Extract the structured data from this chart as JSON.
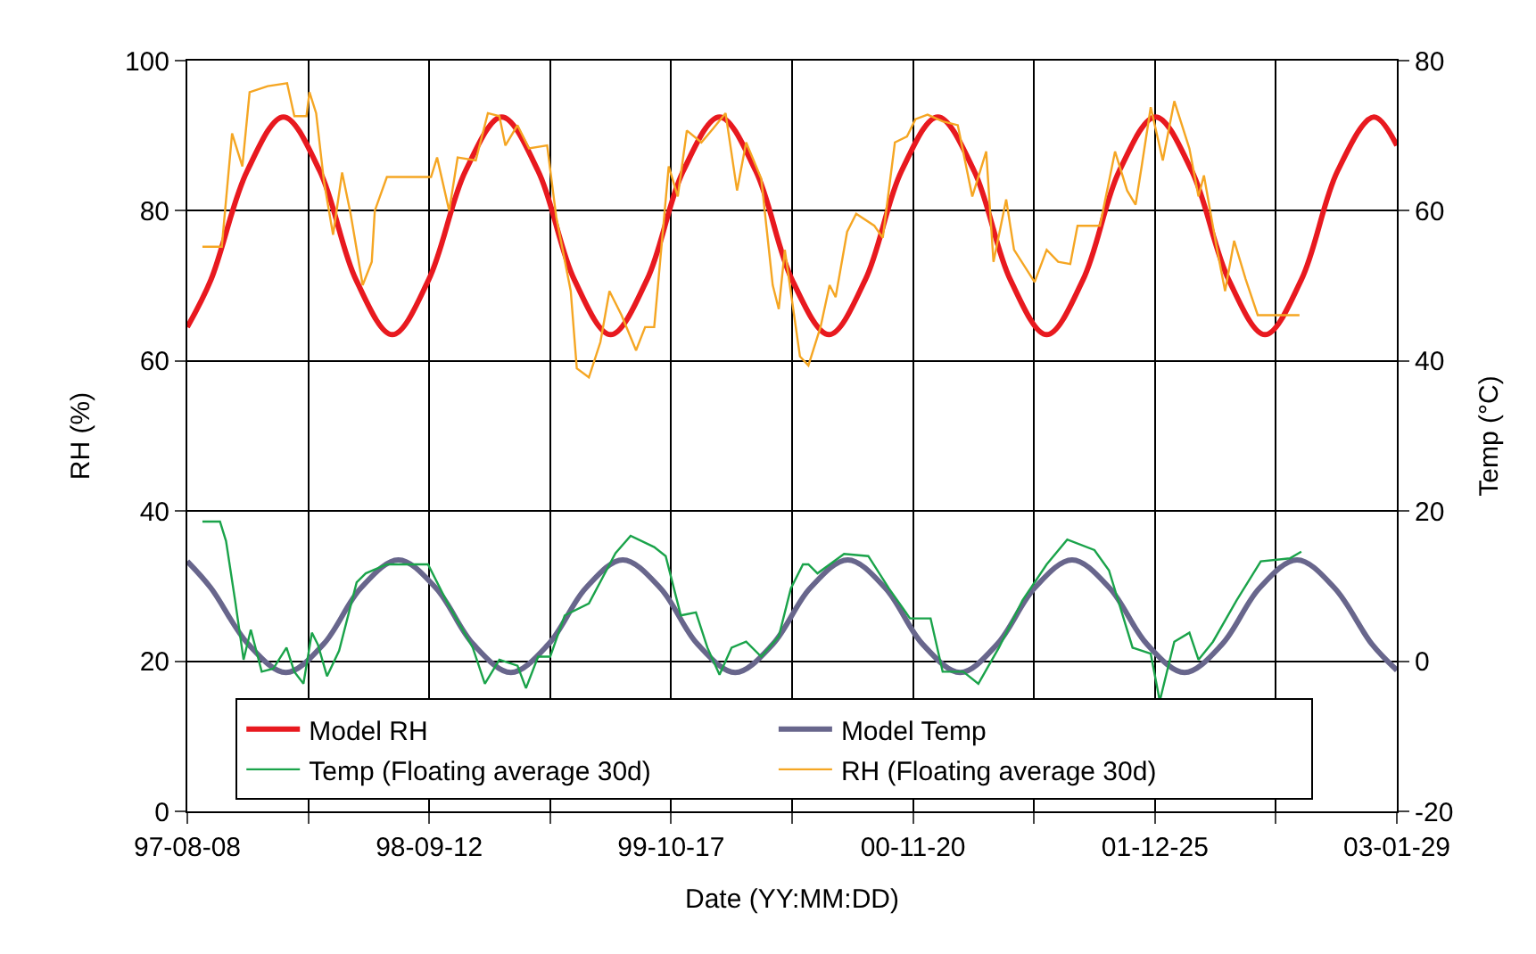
{
  "chart_data": {
    "type": "line",
    "xlabel": "Date (YY:MM:DD)",
    "ylabel": "RH (%)",
    "y2label": "Temp (°C)",
    "xlim": [
      "1997-08-08",
      "2003-01-29"
    ],
    "xticks": [
      {
        "value": "1997-08-08",
        "label": "97-08-08"
      },
      {
        "value": "1998-02-24",
        "label": null
      },
      {
        "value": "1998-09-12",
        "label": "98-09-12"
      },
      {
        "value": "1999-03-31",
        "label": null
      },
      {
        "value": "1999-10-17",
        "label": "99-10-17"
      },
      {
        "value": "2000-05-04",
        "label": null
      },
      {
        "value": "2000-11-20",
        "label": "00-11-20"
      },
      {
        "value": "2001-06-08",
        "label": null
      },
      {
        "value": "2001-12-25",
        "label": "01-12-25"
      },
      {
        "value": "2002-07-13",
        "label": null
      },
      {
        "value": "2003-01-29",
        "label": "03-01-29"
      }
    ],
    "ylim": [
      0,
      100
    ],
    "yticks": [
      0,
      20,
      40,
      60,
      80,
      100
    ],
    "y2lim": [
      -20,
      80
    ],
    "y2ticks": [
      -20,
      0,
      20,
      40,
      60,
      80
    ],
    "grid": true,
    "legend": "bottom",
    "marker": "none",
    "series": [
      {
        "name": "Model RH",
        "color": "#e8191f",
        "x": [
          "1997-08-08",
          "1997-09-16",
          "1997-11-15",
          "1998-01-14",
          "1998-03-15",
          "1998-05-14",
          "1998-07-13",
          "1998-09-11",
          "1998-11-11",
          "1999-01-10",
          "1999-03-11",
          "1999-05-10",
          "1999-07-09",
          "1999-09-07",
          "1999-11-06",
          "2000-01-05",
          "2000-03-05",
          "2000-05-04",
          "2000-07-04",
          "2000-09-02",
          "2000-11-01",
          "2000-12-31",
          "2001-03-01",
          "2001-04-30",
          "2001-06-29",
          "2001-08-28",
          "2001-10-27",
          "2001-12-26",
          "2002-02-24",
          "2002-04-26",
          "2002-06-25",
          "2002-08-24",
          "2002-10-23",
          "2002-12-22",
          "2003-01-29"
        ],
        "values": [
          64.5,
          70.8,
          85.3,
          92.5,
          85.3,
          70.8,
          63.5,
          70.8,
          85.3,
          92.5,
          85.3,
          70.8,
          63.5,
          70.8,
          85.3,
          92.5,
          85.3,
          70.8,
          63.5,
          70.8,
          85.3,
          92.5,
          85.3,
          70.8,
          63.5,
          70.8,
          85.3,
          92.5,
          85.3,
          70.8,
          63.5,
          70.8,
          85.3,
          92.5,
          88.7
        ]
      },
      {
        "name": "Model Temp",
        "color": "#68668c",
        "axis": "y2",
        "x": [
          "1997-08-08",
          "1997-09-16",
          "1997-11-17",
          "1998-01-18",
          "1998-03-21",
          "1998-05-22",
          "1998-07-23",
          "1998-09-23",
          "1998-11-24",
          "1999-01-25",
          "1999-03-28",
          "1999-05-29",
          "1999-07-29",
          "1999-09-29",
          "1999-11-30",
          "2000-01-31",
          "2000-04-02",
          "2000-06-03",
          "2000-08-04",
          "2000-10-05",
          "2000-12-06",
          "2001-02-06",
          "2001-04-08",
          "2001-06-09",
          "2001-08-10",
          "2001-10-11",
          "2001-12-12",
          "2002-02-12",
          "2002-04-15",
          "2002-06-16",
          "2002-08-17",
          "2002-10-18",
          "2002-12-19",
          "2003-01-29"
        ],
        "values": [
          13.3,
          9.75,
          2.25,
          -1.5,
          2.25,
          9.75,
          13.5,
          9.75,
          2.25,
          -1.5,
          2.25,
          9.75,
          13.5,
          9.75,
          2.25,
          -1.5,
          2.25,
          9.75,
          13.5,
          9.75,
          2.25,
          -1.5,
          2.25,
          9.75,
          13.5,
          9.75,
          2.25,
          -1.5,
          2.25,
          9.75,
          13.5,
          9.75,
          2.25,
          -1.2
        ]
      },
      {
        "name": "Temp (Floating average 30d)",
        "color": "#1aa34a",
        "axis": "y2",
        "x": [
          "1997-09-02",
          "1997-10-01",
          "1997-10-11",
          "1997-10-26",
          "1997-11-09",
          "1997-11-21",
          "1997-12-09",
          "1997-12-28",
          "1998-01-19",
          "1998-02-01",
          "1998-02-16",
          "1998-03-02",
          "1998-03-12",
          "1998-03-27",
          "1998-04-16",
          "1998-05-15",
          "1998-05-30",
          "1998-07-04",
          "1998-09-10",
          "1998-10-10",
          "1998-11-23",
          "1998-12-13",
          "1999-01-06",
          "1999-02-05",
          "1999-02-19",
          "1999-03-11",
          "1999-03-31",
          "1999-04-24",
          "1999-06-03",
          "1999-07-17",
          "1999-08-11",
          "1999-09-19",
          "1999-10-08",
          "1999-11-02",
          "1999-11-27",
          "1999-12-16",
          "2000-01-05",
          "2000-01-25",
          "2000-02-18",
          "2000-03-14",
          "2000-04-12",
          "2000-05-02",
          "2000-05-22",
          "2000-05-31",
          "2000-06-15",
          "2000-07-29",
          "2000-09-07",
          "2000-10-11",
          "2000-11-15",
          "2000-12-19",
          "2001-01-08",
          "2001-02-11",
          "2001-03-08",
          "2001-04-11",
          "2001-05-20",
          "2001-06-29",
          "2001-08-02",
          "2001-09-16",
          "2001-10-10",
          "2001-11-18",
          "2001-12-18",
          "2002-01-02",
          "2002-01-26",
          "2002-02-20",
          "2002-03-07",
          "2002-03-31",
          "2002-05-09",
          "2002-06-18",
          "2002-08-05",
          "2002-08-24"
        ],
        "values": [
          18.6,
          18.6,
          16,
          8.1,
          0.2,
          4.2,
          -1.4,
          -1,
          1.8,
          -1.4,
          -3,
          3.8,
          2.2,
          -2,
          1.4,
          10.5,
          11.7,
          12.9,
          12.9,
          8.1,
          1.8,
          -3,
          0.2,
          -0.6,
          -3.6,
          0.6,
          0.6,
          6.1,
          7.7,
          14.4,
          16.7,
          15.2,
          14,
          6.1,
          6.5,
          1.8,
          -1.8,
          1.8,
          2.6,
          0.6,
          3.3,
          9.7,
          12.9,
          12.9,
          11.7,
          14.3,
          14,
          9.7,
          5.7,
          5.7,
          -1.4,
          -1.4,
          -3,
          1.8,
          8.1,
          12.9,
          16.2,
          14.8,
          12.1,
          1.8,
          1,
          -5.3,
          2.6,
          3.8,
          0.2,
          2.6,
          8.1,
          13.3,
          13.7,
          14.6
        ]
      },
      {
        "name": "RH (Floating average 30d)",
        "color": "#f5a623",
        "x": [
          "1997-09-02",
          "1997-10-04",
          "1997-10-21",
          "1997-11-07",
          "1997-11-19",
          "1997-12-19",
          "1998-01-20",
          "1998-02-01",
          "1998-02-21",
          "1998-02-26",
          "1998-03-09",
          "1998-03-22",
          "1998-04-06",
          "1998-04-21",
          "1998-05-05",
          "1998-05-25",
          "1998-06-09",
          "1998-06-14",
          "1998-07-04",
          "1998-09-15",
          "1998-09-25",
          "1998-10-15",
          "1998-10-29",
          "1998-11-28",
          "1998-12-18",
          "1999-01-06",
          "1999-01-16",
          "1999-02-05",
          "1999-02-24",
          "1999-03-26",
          "1999-04-10",
          "1999-05-04",
          "1999-05-14",
          "1999-06-03",
          "1999-06-22",
          "1999-07-07",
          "1999-07-27",
          "1999-08-20",
          "1999-09-04",
          "1999-09-19",
          "1999-10-13",
          "1999-10-28",
          "1999-11-12",
          "1999-12-06",
          "1999-12-26",
          "2000-01-15",
          "2000-02-03",
          "2000-02-18",
          "2000-03-14",
          "2000-04-02",
          "2000-04-12",
          "2000-04-22",
          "2000-05-17",
          "2000-05-31",
          "2000-06-20",
          "2000-07-05",
          "2000-07-15",
          "2000-08-03",
          "2000-08-18",
          "2000-09-17",
          "2000-10-01",
          "2000-10-21",
          "2000-11-10",
          "2000-11-24",
          "2000-12-14",
          "2001-01-08",
          "2001-02-02",
          "2001-02-26",
          "2001-03-21",
          "2001-04-02",
          "2001-04-23",
          "2001-05-06",
          "2001-06-09",
          "2001-06-29",
          "2001-07-18",
          "2001-08-07",
          "2001-08-19",
          "2001-09-25",
          "2001-10-10",
          "2001-10-20",
          "2001-11-09",
          "2001-11-23",
          "2001-12-03",
          "2001-12-18",
          "2002-01-07",
          "2002-01-26",
          "2002-02-20",
          "2002-03-07",
          "2002-03-16",
          "2002-04-05",
          "2002-04-20",
          "2002-05-05",
          "2002-05-24",
          "2002-06-13",
          "2002-08-21"
        ],
        "values": [
          75.2,
          75.2,
          90.3,
          85.9,
          95.8,
          96.6,
          97,
          92.6,
          92.6,
          95.8,
          93,
          83.9,
          76.8,
          85.1,
          79.6,
          70.1,
          73.2,
          80,
          84.5,
          84.5,
          87.1,
          80,
          87.1,
          86.7,
          93,
          92.6,
          88.7,
          91.4,
          88.3,
          88.7,
          79.2,
          69.3,
          59,
          57.8,
          62.5,
          69.3,
          66.1,
          61.4,
          64.5,
          64.5,
          85.9,
          81.9,
          90.7,
          89.1,
          91,
          93,
          82.7,
          89.1,
          84.3,
          70.1,
          66.9,
          74.8,
          60.6,
          59.4,
          64.5,
          70.1,
          68.5,
          77.2,
          79.6,
          78,
          76.4,
          89.1,
          89.9,
          92.2,
          92.8,
          91.9,
          91.4,
          81.9,
          87.9,
          73.2,
          81.5,
          74.8,
          70.5,
          74.8,
          73.2,
          72.9,
          78,
          78,
          83.9,
          87.9,
          82.7,
          80.8,
          85.9,
          93.8,
          86.7,
          94.6,
          88.3,
          81.9,
          84.7,
          75.6,
          69.3,
          76,
          70.9,
          66.1,
          66.1
        ]
      }
    ]
  }
}
